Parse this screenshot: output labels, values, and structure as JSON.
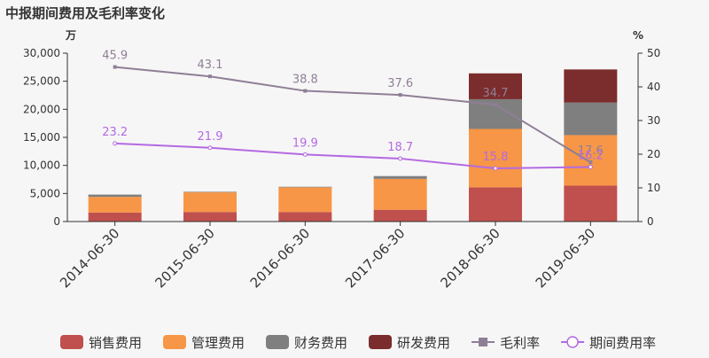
{
  "chart_data": {
    "type": "bar",
    "title": "中报期间费用及毛利率变化",
    "left_unit": "万",
    "right_unit": "%",
    "categories": [
      "2014-06-30",
      "2015-06-30",
      "2016-06-30",
      "2017-06-30",
      "2018-06-30",
      "2019-06-30"
    ],
    "y_left": {
      "min": 0,
      "max": 30000,
      "ticks": [
        "0",
        "5,000",
        "10,000",
        "15,000",
        "20,000",
        "25,000",
        "30,000"
      ]
    },
    "y_right": {
      "min": 0,
      "max": 50,
      "ticks": [
        "0",
        "10",
        "20",
        "30",
        "40",
        "50"
      ]
    },
    "stacked_series": [
      {
        "name": "销售费用",
        "color": "#c0504d",
        "values": [
          1600,
          1700,
          1700,
          2100,
          6100,
          6400
        ]
      },
      {
        "name": "管理费用",
        "color": "#f79646",
        "values": [
          2800,
          3500,
          4400,
          5500,
          10400,
          9000
        ]
      },
      {
        "name": "财务费用",
        "color": "#7f7f7f",
        "values": [
          400,
          100,
          100,
          500,
          5300,
          5800
        ]
      },
      {
        "name": "研发费用",
        "color": "#7b2c2c",
        "values": [
          0,
          0,
          0,
          0,
          4600,
          5900
        ]
      }
    ],
    "line_series": [
      {
        "name": "毛利率",
        "color": "#8e7f96",
        "marker": "square",
        "values": [
          45.9,
          43.1,
          38.8,
          37.6,
          34.7,
          17.6
        ],
        "labels": [
          "45.9",
          "43.1",
          "38.8",
          "37.6",
          "34.7",
          "17.6"
        ]
      },
      {
        "name": "期间费用率",
        "color": "#b36ae2",
        "marker": "circle",
        "values": [
          23.2,
          21.9,
          19.9,
          18.7,
          15.8,
          16.2
        ],
        "labels": [
          "23.2",
          "21.9",
          "19.9",
          "18.7",
          "15.8",
          "16.2"
        ]
      }
    ]
  }
}
